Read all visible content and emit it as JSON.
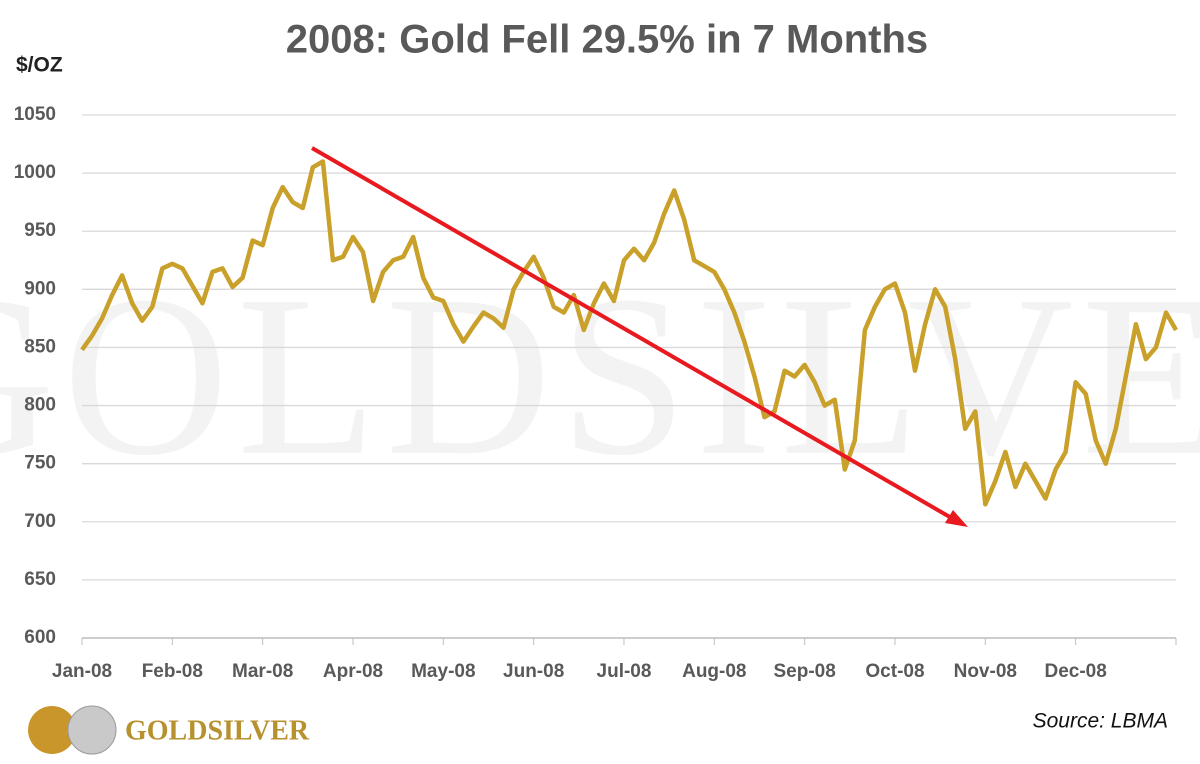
{
  "chart_data": {
    "type": "line",
    "title": "2008: Gold Fell 29.5% in 7 Months",
    "y_label": "$/OZ",
    "source": "Source: LBMA",
    "watermark": "GOLDSILVER",
    "logo": "GOLDSILVER",
    "categories": [
      "Jan-08",
      null,
      null,
      null,
      null,
      null,
      null,
      null,
      null,
      "Feb-08",
      null,
      null,
      null,
      null,
      null,
      null,
      null,
      null,
      "Mar-08",
      null,
      null,
      null,
      null,
      null,
      null,
      null,
      null,
      "Apr-08",
      null,
      null,
      null,
      null,
      null,
      null,
      null,
      null,
      "May-08",
      null,
      null,
      null,
      null,
      null,
      null,
      null,
      null,
      "Jun-08",
      null,
      null,
      null,
      null,
      null,
      null,
      null,
      null,
      "Jul-08",
      null,
      null,
      null,
      null,
      null,
      null,
      null,
      null,
      "Aug-08",
      null,
      null,
      null,
      null,
      null,
      null,
      null,
      null,
      "Sep-08",
      null,
      null,
      null,
      null,
      null,
      null,
      null,
      null,
      "Oct-08",
      null,
      null,
      null,
      null,
      null,
      null,
      null,
      null,
      "Nov-08",
      null,
      null,
      null,
      null,
      null,
      null,
      null,
      null,
      "Dec-08",
      null,
      null,
      null,
      null,
      null,
      null,
      null,
      null,
      null,
      null
    ],
    "series": [
      {
        "name": "Gold",
        "color": "#c9a02a",
        "values": [
          848,
          860,
          875,
          895,
          912,
          888,
          873,
          885,
          918,
          922,
          918,
          903,
          888,
          915,
          918,
          902,
          910,
          942,
          938,
          970,
          988,
          975,
          970,
          1005,
          1010,
          925,
          928,
          945,
          932,
          890,
          915,
          925,
          928,
          945,
          910,
          893,
          890,
          870,
          855,
          868,
          880,
          875,
          867,
          900,
          915,
          928,
          910,
          885,
          880,
          895,
          865,
          888,
          905,
          890,
          925,
          935,
          925,
          940,
          965,
          985,
          960,
          925,
          920,
          915,
          900,
          880,
          855,
          825,
          790,
          795,
          830,
          825,
          835,
          820,
          800,
          805,
          745,
          770,
          865,
          885,
          900,
          905,
          880,
          830,
          870,
          900,
          885,
          840,
          780,
          795,
          715,
          735,
          760,
          730,
          750,
          735,
          720,
          745,
          760,
          820,
          810,
          770,
          750,
          780,
          825,
          870,
          840,
          850,
          880,
          865
        ]
      }
    ],
    "ylim": [
      600,
      1050
    ],
    "yticks": [
      600,
      650,
      700,
      750,
      800,
      850,
      900,
      950,
      1000,
      1050
    ],
    "grid": true
  }
}
